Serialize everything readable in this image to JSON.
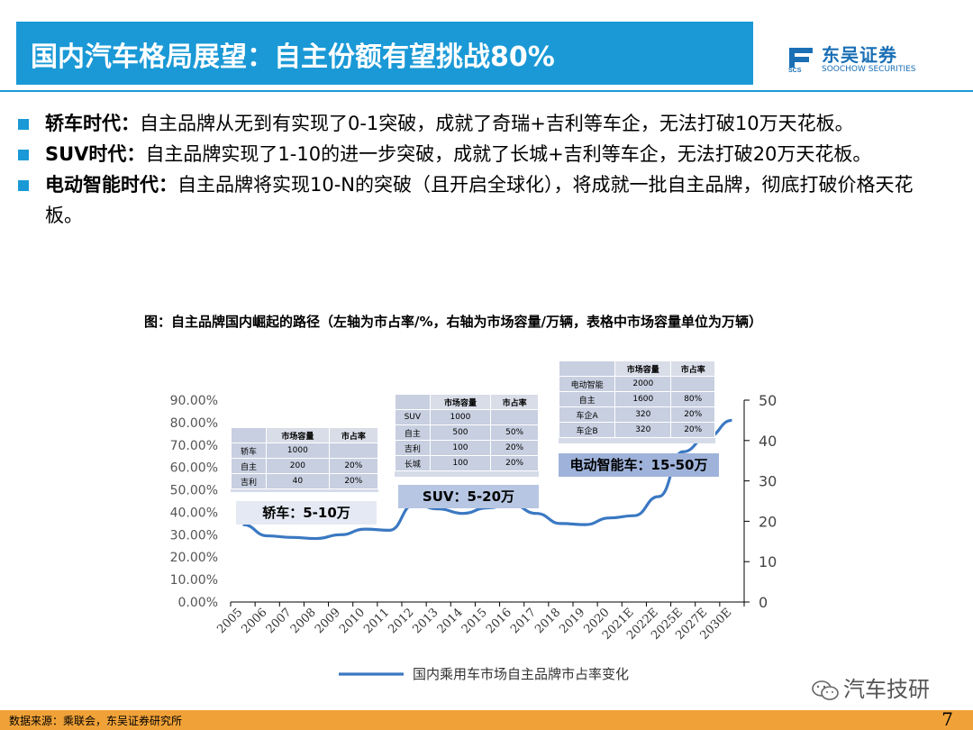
{
  "header": {
    "title": "国内汽车格局展望：自主份额有望挑战80%",
    "logo_cn": "东吴证券",
    "logo_en": "SOOCHOW SECURITIES"
  },
  "bullets": [
    {
      "label": "轿车时代：",
      "text": "自主品牌从无到有实现了0-1突破，成就了奇瑞+吉利等车企，无法打破10万天花板。"
    },
    {
      "label": "SUV时代：",
      "text": "自主品牌实现了1-10的进一步突破，成就了长城+吉利等车企，无法打破20万天花板。"
    },
    {
      "label": "电动智能时代：",
      "text": "自主品牌将实现10-N的突破（且开启全球化），将成就一批自主品牌，彻底打破价格天花板。"
    }
  ],
  "chart_caption": "图：自主品牌国内崛起的路径（左轴为市占率/%，右轴为市场容量/万辆，表格中市场容量单位为万辆）",
  "tables": {
    "sedan": {
      "headers": [
        "",
        "市场容量",
        "市占率"
      ],
      "rows": [
        [
          "轿车",
          "1000",
          ""
        ],
        [
          "自主",
          "200",
          "20%"
        ],
        [
          "吉利",
          "40",
          "20%"
        ]
      ]
    },
    "suv": {
      "headers": [
        "",
        "市场容量",
        "市占率"
      ],
      "rows": [
        [
          "SUV",
          "1000",
          ""
        ],
        [
          "自主",
          "500",
          "50%"
        ],
        [
          "吉利",
          "100",
          "20%"
        ],
        [
          "长城",
          "100",
          "20%"
        ]
      ]
    },
    "ev": {
      "headers": [
        "",
        "市场容量",
        "市占率"
      ],
      "rows": [
        [
          "电动智能",
          "2000",
          ""
        ],
        [
          "自主",
          "1600",
          "80%"
        ],
        [
          "车企A",
          "320",
          "20%"
        ],
        [
          "车企B",
          "320",
          "20%"
        ]
      ]
    }
  },
  "era_labels": {
    "sedan": "轿车：5-10万",
    "suv": "SUV：5-20万",
    "ev": "电动智能车：15-50万"
  },
  "chart_data": {
    "type": "line",
    "title": "",
    "categories": [
      "2005",
      "2006",
      "2007",
      "2008",
      "2009",
      "2010",
      "2011",
      "2012",
      "2013",
      "2014",
      "2015",
      "2016",
      "2017",
      "2018",
      "2019",
      "2020",
      "2021E",
      "2022E",
      "2025E",
      "2027E",
      "2030E"
    ],
    "series": [
      {
        "name": "国内乘用车市场自主品牌市占率变化",
        "values": [
          34.5,
          29.5,
          28.8,
          28.3,
          30,
          32.5,
          32,
          43.5,
          41.5,
          39.5,
          42,
          43.5,
          39.5,
          35,
          34.5,
          37.5,
          38.5,
          47,
          67,
          73.5,
          81
        ],
        "color": "#3a78c2"
      }
    ],
    "y_left": {
      "min": 0,
      "max": 90,
      "step": 10,
      "tick_labels": [
        "0.00%",
        "10.00%",
        "20.00%",
        "30.00%",
        "40.00%",
        "50.00%",
        "60.00%",
        "70.00%",
        "80.00%",
        "90.00%"
      ]
    },
    "y_right": {
      "min": 0,
      "max": 50,
      "step": 10,
      "tick_labels": [
        "0",
        "10",
        "20",
        "30",
        "40",
        "50"
      ]
    },
    "legend_position": "bottom",
    "grid": false
  },
  "footer": {
    "source": "数据来源：乘联会，东吴证券研究所",
    "page": "7",
    "wechat": "汽车技研"
  }
}
